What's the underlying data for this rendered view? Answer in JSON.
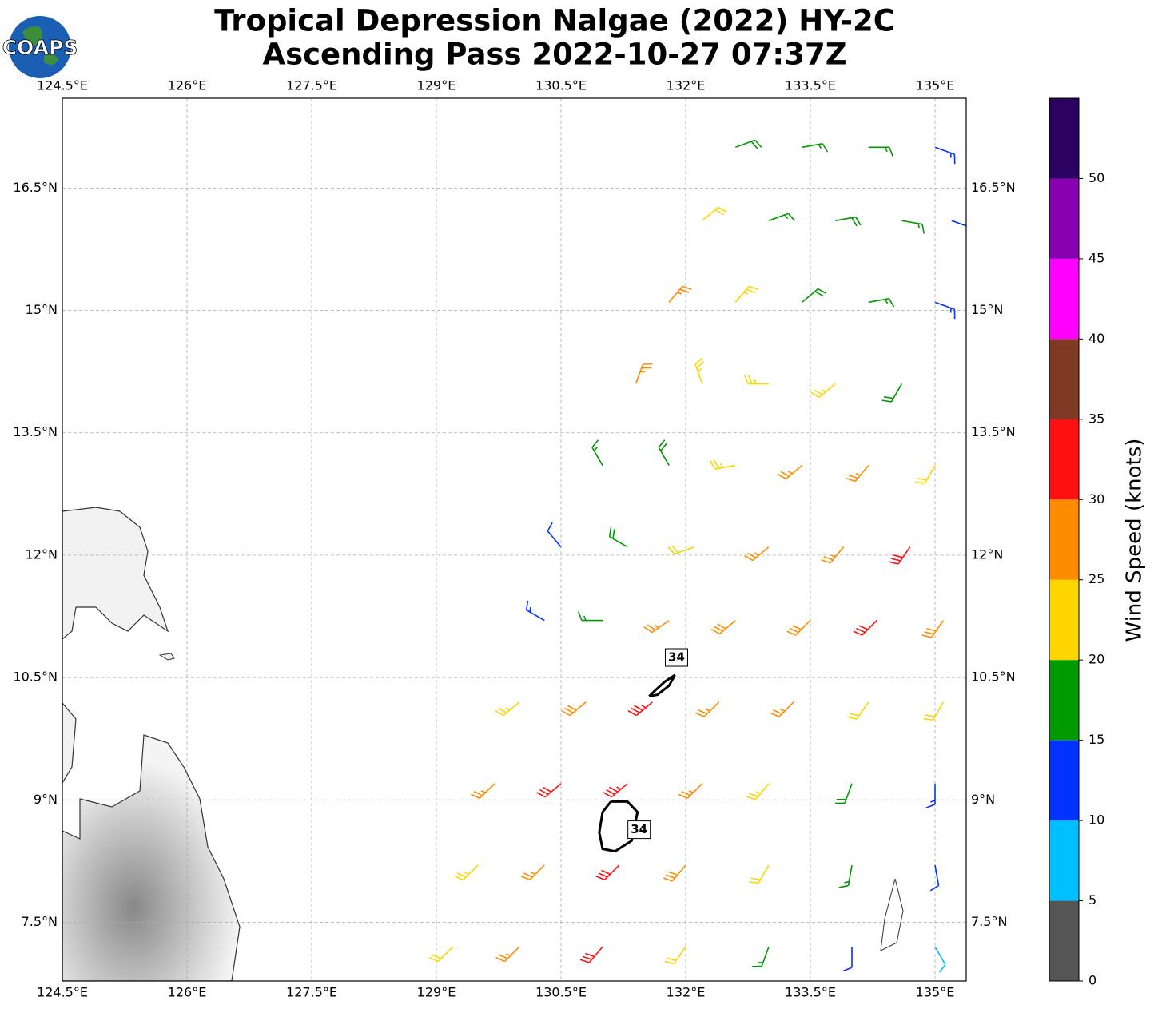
{
  "chart_data": {
    "type": "wind-barbs",
    "title": [
      "Tropical Depression Nalgae (2022) HY-2C",
      "Ascending Pass 2022-10-27 07:37Z"
    ],
    "logo": "COAPS",
    "xlim": [
      124.5,
      135.375
    ],
    "ylim": [
      6.78,
      17.6
    ],
    "xticks": [
      {
        "value": 124.5,
        "label": "124.5°E"
      },
      {
        "value": 126,
        "label": "126°E"
      },
      {
        "value": 127.5,
        "label": "127.5°E"
      },
      {
        "value": 129,
        "label": "129°E"
      },
      {
        "value": 130.5,
        "label": "130.5°E"
      },
      {
        "value": 132,
        "label": "132°E"
      },
      {
        "value": 133.5,
        "label": "133.5°E"
      },
      {
        "value": 135,
        "label": "135°E"
      }
    ],
    "yticks": [
      {
        "value": 7.5,
        "label": "7.5°N"
      },
      {
        "value": 9,
        "label": "9°N"
      },
      {
        "value": 10.5,
        "label": "10.5°N"
      },
      {
        "value": 12,
        "label": "12°N"
      },
      {
        "value": 13.5,
        "label": "13.5°N"
      },
      {
        "value": 15,
        "label": "15°N"
      },
      {
        "value": 16.5,
        "label": "16.5°N"
      }
    ],
    "grid": true,
    "barbs": {
      "lon": [
        129.2,
        130.0,
        131.0,
        132.0,
        133.0,
        134.0,
        135.0,
        129.5,
        130.3,
        131.2,
        132.0,
        133.0,
        134.0,
        135.0,
        129.7,
        130.5,
        131.3,
        132.2,
        133.0,
        134.0,
        135.0,
        130.0,
        130.8,
        131.6,
        132.4,
        133.3,
        134.2,
        135.1,
        130.3,
        131.0,
        131.8,
        132.6,
        133.5,
        134.3,
        135.1,
        130.5,
        131.3,
        132.1,
        133.0,
        133.9,
        134.7,
        131.0,
        131.8,
        132.6,
        133.4,
        134.2,
        135.0,
        131.4,
        132.2,
        133.0,
        133.8,
        134.6,
        131.8,
        132.6,
        133.4,
        134.2,
        135.0,
        132.2,
        133.0,
        133.8,
        134.6,
        135.2,
        132.6,
        133.4,
        134.2,
        135.0
      ],
      "lat": [
        7.2,
        7.2,
        7.2,
        7.2,
        7.2,
        7.2,
        7.2,
        8.2,
        8.2,
        8.2,
        8.2,
        8.2,
        8.2,
        8.2,
        9.2,
        9.2,
        9.2,
        9.2,
        9.2,
        9.2,
        9.2,
        10.2,
        10.2,
        10.2,
        10.2,
        10.2,
        10.2,
        10.2,
        11.2,
        11.2,
        11.2,
        11.2,
        11.2,
        11.2,
        11.2,
        12.1,
        12.1,
        12.1,
        12.1,
        12.1,
        12.1,
        13.1,
        13.1,
        13.1,
        13.1,
        13.1,
        13.1,
        14.1,
        14.1,
        14.1,
        14.1,
        14.1,
        15.1,
        15.1,
        15.1,
        15.1,
        15.1,
        16.1,
        16.1,
        16.1,
        16.1,
        16.1,
        17.0,
        17.0,
        17.0,
        17.0
      ],
      "speed": [
        22,
        26,
        31,
        22,
        17,
        12,
        8,
        23,
        27,
        32,
        28,
        21,
        17,
        12,
        26,
        31,
        33,
        27,
        23,
        19,
        14,
        23,
        28,
        33,
        26,
        25,
        22,
        21,
        14,
        17,
        27,
        28,
        28,
        31,
        28,
        12,
        18,
        21,
        27,
        26,
        32,
        17,
        19,
        24,
        27,
        26,
        22,
        26,
        23,
        24,
        23,
        19,
        27,
        23,
        18,
        16,
        13,
        22,
        17,
        18,
        16,
        12,
        18,
        17,
        17,
        13
      ],
      "direction": [
        225,
        225,
        220,
        215,
        200,
        180,
        150,
        225,
        225,
        225,
        220,
        210,
        190,
        170,
        225,
        230,
        230,
        225,
        220,
        200,
        180,
        230,
        230,
        230,
        225,
        225,
        215,
        210,
        300,
        270,
        235,
        230,
        225,
        225,
        215,
        320,
        300,
        250,
        230,
        220,
        215,
        330,
        330,
        260,
        230,
        220,
        210,
        20,
        340,
        270,
        230,
        210,
        40,
        40,
        50,
        80,
        110,
        50,
        70,
        80,
        100,
        110,
        70,
        80,
        90,
        110
      ]
    },
    "contours": [
      {
        "level": 34,
        "lon": [
          131.56,
          131.62,
          131.75,
          131.87,
          131.8,
          131.66,
          131.56
        ],
        "lat": [
          10.27,
          10.33,
          10.45,
          10.53,
          10.4,
          10.29,
          10.27
        ]
      },
      {
        "level": 34,
        "lon": [
          131.1,
          131.0,
          130.96,
          131.0,
          131.15,
          131.35,
          131.42,
          131.3,
          131.1
        ],
        "lat": [
          8.98,
          8.85,
          8.6,
          8.4,
          8.37,
          8.5,
          8.85,
          8.98,
          8.98
        ]
      }
    ],
    "colorbar": {
      "label": "Wind Speed (knots)",
      "bounds": [
        0,
        5,
        10,
        15,
        20,
        25,
        30,
        35,
        40,
        45,
        50,
        55
      ],
      "colors": [
        "#555555",
        "#00bfff",
        "#0033ff",
        "#009900",
        "#ffd500",
        "#ff8c00",
        "#ff1010",
        "#7f3a26",
        "#ff00ff",
        "#8800b0",
        "#2a0060"
      ],
      "ticks": [
        0,
        5,
        10,
        15,
        20,
        25,
        30,
        35,
        40,
        45,
        50
      ]
    }
  }
}
